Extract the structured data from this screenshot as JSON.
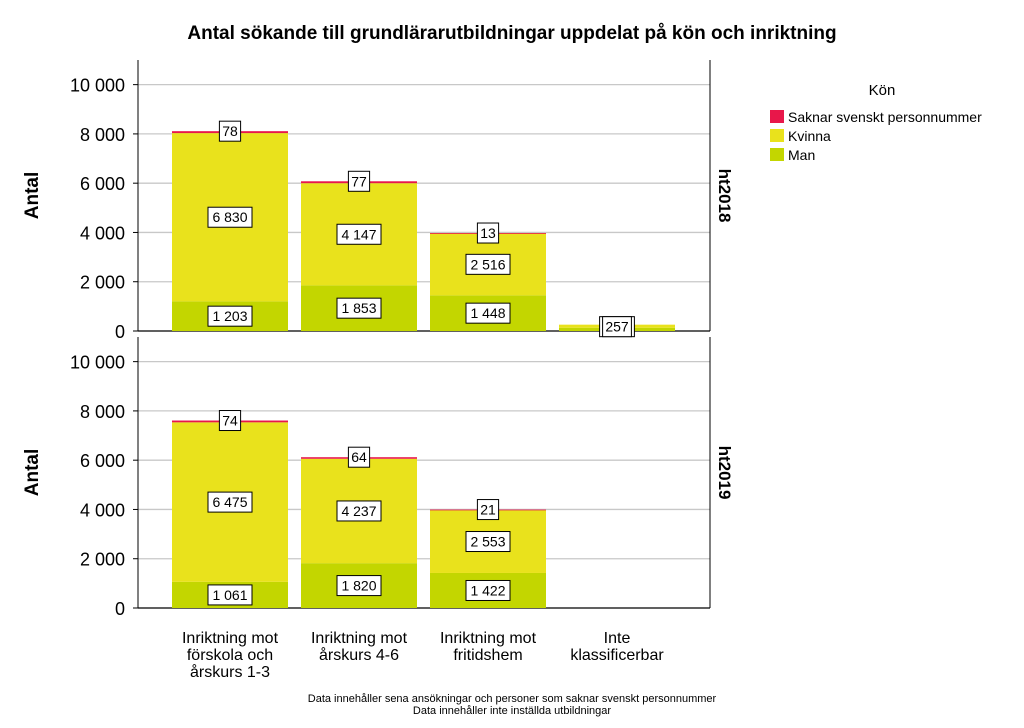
{
  "chart_data": {
    "type": "bar",
    "stacked": true,
    "title": "Antal sökande till grundlärarutbildningar uppdelat på kön och inriktning",
    "ylabel": "Antal",
    "xlabel": "",
    "ylim": [
      0,
      11000
    ],
    "yticks": [
      0,
      2000,
      4000,
      6000,
      8000,
      10000
    ],
    "ytick_labels": [
      "0",
      "2 000",
      "4 000",
      "6 000",
      "8 000",
      "10 000"
    ],
    "grid": true,
    "categories": [
      [
        "Inriktning mot",
        "förskola och",
        "årskurs 1-3"
      ],
      [
        "Inriktning mot",
        "årskurs 4-6"
      ],
      [
        "Inriktning mot",
        "fritidshem"
      ],
      [
        "Inte",
        "klassificerbar"
      ]
    ],
    "legend": {
      "title": "Kön",
      "position": "top-right",
      "entries": [
        {
          "name": "Saknar svenskt personnummer",
          "color": "#e8174a"
        },
        {
          "name": "Kvinna",
          "color": "#e9e21c"
        },
        {
          "name": "Man",
          "color": "#c3d600"
        }
      ]
    },
    "panels": [
      {
        "facet_label": "ht2018",
        "series": [
          {
            "name": "Man",
            "values": [
              1203,
              1853,
              1448,
              130
            ],
            "labels": [
              "1 203",
              "1 853",
              "1 448",
              ""
            ]
          },
          {
            "name": "Kvinna",
            "values": [
              6830,
              4147,
              2516,
              127
            ],
            "labels": [
              "6 830",
              "4 147",
              "2 516",
              ""
            ]
          },
          {
            "name": "Saknar svenskt personnummer",
            "values": [
              78,
              77,
              13,
              0
            ],
            "labels": [
              "78",
              "77",
              "13",
              ""
            ]
          }
        ],
        "extra_labels": [
          {
            "category": 3,
            "text": "257"
          }
        ]
      },
      {
        "facet_label": "ht2019",
        "series": [
          {
            "name": "Man",
            "values": [
              1061,
              1820,
              1422,
              0
            ],
            "labels": [
              "1 061",
              "1 820",
              "1 422",
              ""
            ]
          },
          {
            "name": "Kvinna",
            "values": [
              6475,
              4237,
              2553,
              0
            ],
            "labels": [
              "6 475",
              "4 237",
              "2 553",
              ""
            ]
          },
          {
            "name": "Saknar svenskt personnummer",
            "values": [
              74,
              64,
              21,
              0
            ],
            "labels": [
              "74",
              "64",
              "21",
              ""
            ]
          }
        ],
        "extra_labels": []
      }
    ],
    "footnotes": [
      "Data innehåller sena ansökningar och personer som saknar svenskt personnummer",
      "Data innehåller inte inställda utbildningar"
    ]
  }
}
